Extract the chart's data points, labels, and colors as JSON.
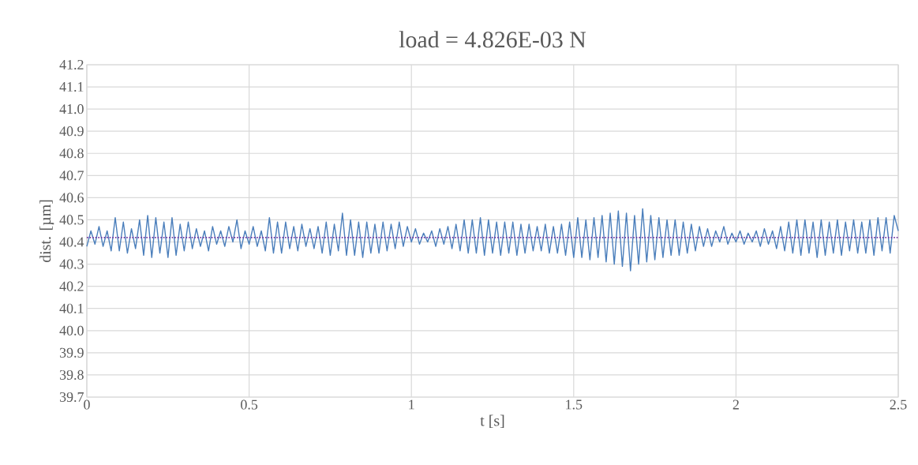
{
  "chart_data": {
    "type": "line",
    "title": "load = 4.826E-03 N",
    "xlabel": "t [s]",
    "ylabel": "dist. [µm]",
    "xlim": [
      0,
      2.5
    ],
    "xticks": [
      0,
      0.5,
      1,
      1.5,
      2,
      2.5
    ],
    "ylim": [
      39.7,
      41.2
    ],
    "yticks": [
      {
        "value": 39.7,
        "label": "39.7"
      },
      {
        "value": 39.8,
        "label": "39.8"
      },
      {
        "value": 39.9,
        "label": "39.9"
      },
      {
        "value": 40.0,
        "label": "40.0"
      },
      {
        "value": 40.1,
        "label": "40.1"
      },
      {
        "value": 40.2,
        "label": "40.2"
      },
      {
        "value": 40.3,
        "label": "40.3"
      },
      {
        "value": 40.4,
        "label": "40.4"
      },
      {
        "value": 40.5,
        "label": "40.5"
      },
      {
        "value": 40.6,
        "label": "40.6"
      },
      {
        "value": 40.7,
        "label": "40.7"
      },
      {
        "value": 40.8,
        "label": "40.8"
      },
      {
        "value": 40.9,
        "label": "40.9"
      },
      {
        "value": 41.0,
        "label": "41.0"
      },
      {
        "value": 41.1,
        "label": "41.1"
      },
      {
        "value": 41.2,
        "label": "41.2"
      }
    ],
    "grid": true,
    "marker": "none",
    "line_style": "solid",
    "ref_lines": [
      {
        "axis": "y",
        "value": 40.42,
        "color": "#7030a0",
        "line_style": "dotted"
      }
    ],
    "x": [
      0,
      0.0125,
      0.025,
      0.0375,
      0.05,
      0.0625,
      0.075,
      0.0875,
      0.1,
      0.1125,
      0.125,
      0.1375,
      0.15,
      0.1625,
      0.175,
      0.1875,
      0.2,
      0.2125,
      0.225,
      0.2375,
      0.25,
      0.2625,
      0.275,
      0.2875,
      0.3,
      0.3125,
      0.325,
      0.3375,
      0.35,
      0.3625,
      0.375,
      0.3875,
      0.4,
      0.4125,
      0.425,
      0.4375,
      0.45,
      0.4625,
      0.475,
      0.4875,
      0.5,
      0.5125,
      0.525,
      0.5375,
      0.55,
      0.5625,
      0.575,
      0.5875,
      0.6,
      0.6125,
      0.625,
      0.6375,
      0.65,
      0.6625,
      0.675,
      0.6875,
      0.7,
      0.7125,
      0.725,
      0.7375,
      0.75,
      0.7625,
      0.775,
      0.7875,
      0.8,
      0.8125,
      0.825,
      0.8375,
      0.85,
      0.8625,
      0.875,
      0.8875,
      0.9,
      0.9125,
      0.925,
      0.9375,
      0.95,
      0.9625,
      0.975,
      0.9875,
      1,
      1.0125,
      1.025,
      1.0375,
      1.05,
      1.0625,
      1.075,
      1.0875,
      1.1,
      1.1125,
      1.125,
      1.1375,
      1.15,
      1.1625,
      1.175,
      1.1875,
      1.2,
      1.2125,
      1.225,
      1.2375,
      1.25,
      1.2625,
      1.275,
      1.2875,
      1.3,
      1.3125,
      1.325,
      1.3375,
      1.35,
      1.3625,
      1.375,
      1.3875,
      1.4,
      1.4125,
      1.425,
      1.4375,
      1.45,
      1.4625,
      1.475,
      1.4875,
      1.5,
      1.5125,
      1.525,
      1.5375,
      1.55,
      1.5625,
      1.575,
      1.5875,
      1.6,
      1.6125,
      1.625,
      1.6375,
      1.65,
      1.6625,
      1.675,
      1.6875,
      1.7,
      1.7125,
      1.725,
      1.7375,
      1.75,
      1.7625,
      1.775,
      1.7875,
      1.8,
      1.8125,
      1.825,
      1.8375,
      1.85,
      1.8625,
      1.875,
      1.8875,
      1.9,
      1.9125,
      1.925,
      1.9375,
      1.95,
      1.9625,
      1.975,
      1.9875,
      2,
      2.0125,
      2.025,
      2.0375,
      2.05,
      2.0625,
      2.075,
      2.0875,
      2.1,
      2.1125,
      2.125,
      2.1375,
      2.15,
      2.1625,
      2.175,
      2.1875,
      2.2,
      2.2125,
      2.225,
      2.2375,
      2.25,
      2.2625,
      2.275,
      2.2875,
      2.3,
      2.3125,
      2.325,
      2.3375,
      2.35,
      2.3625,
      2.375,
      2.3875,
      2.4,
      2.4125,
      2.425,
      2.4375,
      2.45,
      2.4625,
      2.475,
      2.4875,
      2.5
    ],
    "series": [
      {
        "color": "#4a7ebb",
        "values": [
          40.38,
          40.45,
          40.39,
          40.47,
          40.38,
          40.45,
          40.36,
          40.51,
          40.36,
          40.49,
          40.35,
          40.46,
          40.37,
          40.5,
          40.34,
          40.52,
          40.33,
          40.51,
          40.35,
          40.49,
          40.33,
          40.51,
          40.34,
          40.48,
          40.36,
          40.49,
          40.37,
          40.46,
          40.38,
          40.45,
          40.36,
          40.47,
          40.39,
          40.45,
          40.38,
          40.47,
          40.4,
          40.5,
          40.37,
          40.45,
          40.39,
          40.47,
          40.38,
          40.45,
          40.36,
          40.51,
          40.35,
          40.49,
          40.35,
          40.49,
          40.37,
          40.47,
          40.36,
          40.48,
          40.38,
          40.46,
          40.37,
          40.47,
          40.35,
          40.49,
          40.34,
          40.48,
          40.36,
          40.53,
          40.34,
          40.5,
          40.34,
          40.49,
          40.33,
          40.49,
          40.35,
          40.48,
          40.35,
          40.49,
          40.36,
          40.48,
          40.37,
          40.49,
          40.38,
          40.47,
          40.4,
          40.46,
          40.39,
          40.44,
          40.4,
          40.45,
          40.38,
          40.46,
          40.39,
          40.47,
          40.37,
          40.48,
          40.36,
          40.5,
          40.35,
          40.5,
          40.35,
          40.51,
          40.34,
          40.5,
          40.35,
          40.49,
          40.34,
          40.49,
          40.35,
          40.49,
          40.34,
          40.48,
          40.35,
          40.48,
          40.36,
          40.47,
          40.36,
          40.48,
          40.35,
          40.47,
          40.35,
          40.48,
          40.34,
          40.49,
          40.33,
          40.51,
          40.33,
          40.5,
          40.32,
          40.51,
          40.33,
          40.52,
          40.31,
          40.53,
          40.3,
          40.54,
          40.29,
          40.53,
          40.27,
          40.52,
          40.3,
          40.55,
          40.31,
          40.52,
          40.32,
          40.51,
          40.33,
          40.5,
          40.34,
          40.5,
          40.34,
          40.49,
          40.35,
          40.48,
          40.36,
          40.47,
          40.38,
          40.46,
          40.38,
          40.45,
          40.4,
          40.47,
          40.39,
          40.44,
          40.4,
          40.45,
          40.39,
          40.44,
          40.4,
          40.45,
          40.38,
          40.46,
          40.39,
          40.45,
          40.37,
          40.47,
          40.36,
          40.49,
          40.35,
          40.5,
          40.34,
          40.5,
          40.35,
          40.49,
          40.33,
          40.5,
          40.34,
          40.49,
          40.35,
          40.5,
          40.34,
          40.49,
          40.36,
          40.5,
          40.35,
          40.49,
          40.35,
          40.5,
          40.34,
          40.51,
          40.36,
          40.51,
          40.35,
          40.52,
          40.45
        ]
      }
    ]
  }
}
